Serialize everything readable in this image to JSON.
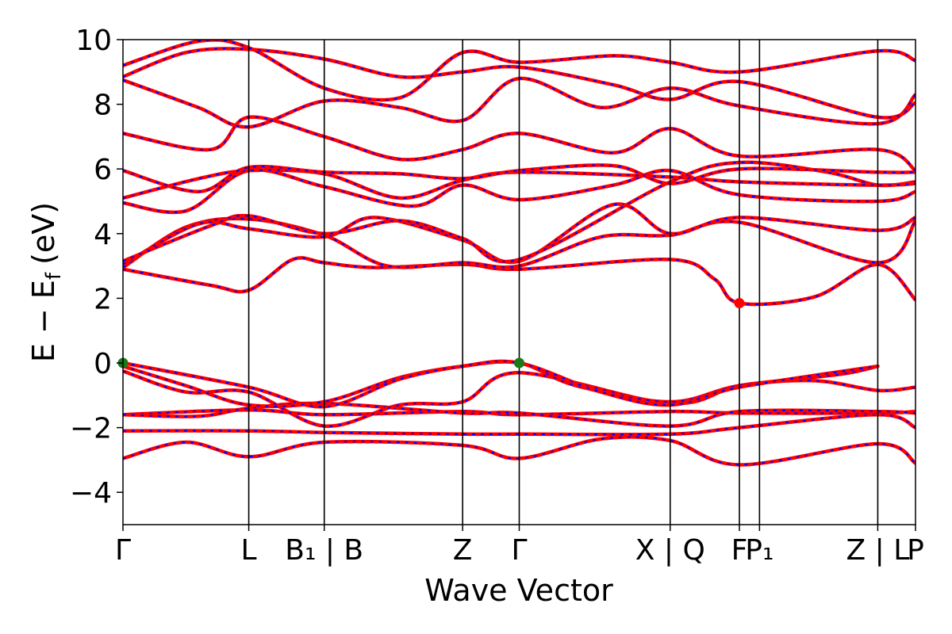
{
  "chart_data": {
    "type": "line",
    "title": "",
    "xlabel": "Wave Vector",
    "ylabel": "E − E_f (eV)",
    "ylabel_parts": {
      "main": "E − E",
      "sub": "f",
      "unit": "(eV)"
    },
    "ylim": [
      -5,
      10
    ],
    "xlim": [
      0,
      10
    ],
    "yticks": [
      -4,
      -2,
      0,
      2,
      4,
      6,
      8,
      10
    ],
    "ytick_labels": [
      "−4",
      "−2",
      "0",
      "2",
      "4",
      "6",
      "8",
      "10"
    ],
    "kpoints": [
      {
        "x": 0.0,
        "label": "Γ"
      },
      {
        "x": 1.0,
        "label": "L"
      },
      {
        "x": 1.6,
        "label": "B₁ | B"
      },
      {
        "x": 2.7,
        "label": "Z"
      },
      {
        "x": 3.15,
        "label": "Γ"
      },
      {
        "x": 4.35,
        "label": "X | Q"
      },
      {
        "x": 4.9,
        "label": "F"
      },
      {
        "x": 5.06,
        "label": "P₁"
      },
      {
        "x": 6.0,
        "label": "Z | L"
      },
      {
        "x": 6.3,
        "label": "P"
      }
    ],
    "line_colors": {
      "band_a": "#ff0000",
      "band_b": "#0000ff"
    },
    "grid": false,
    "legend": "none",
    "markers": [
      {
        "name": "VBM",
        "x": 0.0,
        "y": 0.0,
        "color": "#1a7a1a"
      },
      {
        "name": "VBM",
        "x": 3.15,
        "y": 0.0,
        "color": "#1a7a1a"
      },
      {
        "name": "CBM",
        "x": 4.9,
        "y": 1.85,
        "color": "#ff0000"
      }
    ],
    "bands": [
      [
        [
          0,
          -2.95
        ],
        [
          0.5,
          -2.45
        ],
        [
          1.0,
          -2.9
        ],
        [
          1.6,
          -2.45
        ],
        [
          2.7,
          -2.55
        ],
        [
          3.15,
          -2.95
        ],
        [
          3.8,
          -2.35
        ],
        [
          4.35,
          -2.4
        ],
        [
          4.9,
          -3.15
        ],
        [
          6.0,
          -2.5
        ],
        [
          6.3,
          -3.1
        ]
      ],
      [
        [
          0,
          -2.1
        ],
        [
          1.0,
          -2.1
        ],
        [
          1.6,
          -2.15
        ],
        [
          2.7,
          -2.2
        ],
        [
          3.15,
          -2.2
        ],
        [
          4.35,
          -2.2
        ],
        [
          4.9,
          -2.0
        ],
        [
          6.0,
          -1.6
        ],
        [
          6.3,
          -2.0
        ]
      ],
      [
        [
          0,
          -1.6
        ],
        [
          1.0,
          -1.45
        ],
        [
          1.6,
          -1.6
        ],
        [
          2.7,
          -1.5
        ],
        [
          3.15,
          -1.6
        ],
        [
          4.35,
          -1.5
        ],
        [
          4.9,
          -1.55
        ],
        [
          6.0,
          -1.55
        ],
        [
          6.3,
          -1.5
        ]
      ],
      [
        [
          0,
          -1.6
        ],
        [
          0.6,
          -1.65
        ],
        [
          1.0,
          -1.4
        ],
        [
          1.6,
          -1.25
        ],
        [
          2.7,
          -1.55
        ],
        [
          3.15,
          -1.55
        ],
        [
          4.35,
          -1.95
        ],
        [
          4.9,
          -1.5
        ],
        [
          6.0,
          -1.5
        ],
        [
          6.3,
          -1.55
        ]
      ],
      [
        [
          0,
          -0.25
        ],
        [
          0.5,
          -0.9
        ],
        [
          1.0,
          -0.9
        ],
        [
          1.6,
          -1.95
        ],
        [
          2.2,
          -1.3
        ],
        [
          2.7,
          -1.2
        ],
        [
          3.15,
          -0.3
        ],
        [
          4.35,
          -1.25
        ],
        [
          4.9,
          -0.7
        ],
        [
          5.5,
          -0.55
        ],
        [
          6.0,
          -0.85
        ],
        [
          6.3,
          -0.75
        ]
      ],
      [
        [
          0,
          -0.1
        ],
        [
          0.5,
          -0.7
        ],
        [
          1.0,
          -1.3
        ],
        [
          1.6,
          -1.2
        ],
        [
          2.2,
          -0.45
        ],
        [
          2.7,
          -0.1
        ],
        [
          3.15,
          0.0
        ],
        [
          3.6,
          -0.7
        ],
        [
          4.35,
          -1.2
        ],
        [
          4.9,
          -0.7
        ],
        [
          5.7,
          -0.35
        ],
        [
          6.0,
          -0.1
        ]
      ],
      [
        [
          0,
          0.0
        ],
        [
          1.0,
          -0.75
        ],
        [
          1.6,
          -1.35
        ],
        [
          2.2,
          -0.5
        ],
        [
          2.7,
          -0.1
        ],
        [
          3.15,
          0.0
        ],
        [
          3.8,
          -0.9
        ],
        [
          4.35,
          -1.3
        ],
        [
          4.9,
          -0.75
        ],
        [
          6.0,
          -0.1
        ]
      ],
      [
        [
          0,
          2.9
        ],
        [
          0.7,
          2.4
        ],
        [
          1.0,
          2.25
        ],
        [
          1.35,
          3.2
        ],
        [
          1.6,
          3.1
        ],
        [
          2.0,
          2.95
        ],
        [
          2.7,
          3.05
        ],
        [
          3.15,
          2.9
        ],
        [
          4.35,
          3.2
        ],
        [
          4.7,
          2.6
        ],
        [
          4.9,
          1.85
        ],
        [
          5.5,
          2.05
        ],
        [
          6.0,
          3.05
        ],
        [
          6.3,
          1.95
        ]
      ],
      [
        [
          0,
          2.95
        ],
        [
          0.5,
          4.2
        ],
        [
          1.0,
          4.45
        ],
        [
          1.6,
          3.95
        ],
        [
          2.1,
          3.0
        ],
        [
          2.7,
          3.1
        ],
        [
          3.15,
          3.0
        ],
        [
          3.8,
          3.9
        ],
        [
          4.35,
          3.95
        ],
        [
          4.9,
          4.35
        ],
        [
          6.0,
          3.1
        ],
        [
          6.3,
          4.4
        ]
      ],
      [
        [
          0,
          3.05
        ],
        [
          0.6,
          4.3
        ],
        [
          1.0,
          4.15
        ],
        [
          1.6,
          3.9
        ],
        [
          2.0,
          4.5
        ],
        [
          2.7,
          3.8
        ],
        [
          3.15,
          3.15
        ],
        [
          3.9,
          4.9
        ],
        [
          4.35,
          4.0
        ],
        [
          4.9,
          4.5
        ],
        [
          6.0,
          4.1
        ],
        [
          6.3,
          4.5
        ]
      ],
      [
        [
          0,
          3.15
        ],
        [
          0.7,
          4.25
        ],
        [
          1.0,
          4.55
        ],
        [
          1.6,
          4.0
        ],
        [
          2.2,
          4.4
        ],
        [
          2.7,
          3.85
        ],
        [
          3.15,
          3.2
        ],
        [
          4.35,
          5.6
        ],
        [
          4.9,
          6.2
        ],
        [
          5.6,
          5.9
        ],
        [
          6.0,
          5.5
        ],
        [
          6.3,
          5.6
        ]
      ],
      [
        [
          0,
          4.95
        ],
        [
          0.5,
          4.7
        ],
        [
          1.0,
          5.95
        ],
        [
          1.6,
          5.45
        ],
        [
          2.3,
          4.85
        ],
        [
          2.7,
          5.5
        ],
        [
          3.15,
          5.05
        ],
        [
          3.9,
          5.5
        ],
        [
          4.35,
          5.95
        ],
        [
          4.9,
          5.2
        ],
        [
          6.0,
          5.0
        ],
        [
          6.3,
          5.3
        ]
      ],
      [
        [
          0,
          5.1
        ],
        [
          0.6,
          5.7
        ],
        [
          1.0,
          5.95
        ],
        [
          1.6,
          5.85
        ],
        [
          2.2,
          5.1
        ],
        [
          2.7,
          5.65
        ],
        [
          3.15,
          5.9
        ],
        [
          4.35,
          5.75
        ],
        [
          4.9,
          5.6
        ],
        [
          6.0,
          5.5
        ],
        [
          6.3,
          5.55
        ]
      ],
      [
        [
          0,
          5.95
        ],
        [
          0.6,
          5.3
        ],
        [
          1.0,
          6.05
        ],
        [
          1.6,
          5.9
        ],
        [
          2.2,
          5.85
        ],
        [
          2.7,
          5.7
        ],
        [
          3.15,
          5.95
        ],
        [
          3.9,
          6.1
        ],
        [
          4.35,
          5.55
        ],
        [
          4.9,
          6.0
        ],
        [
          6.0,
          5.9
        ],
        [
          6.3,
          5.9
        ]
      ],
      [
        [
          0,
          7.1
        ],
        [
          0.7,
          6.6
        ],
        [
          1.0,
          7.6
        ],
        [
          1.6,
          7.0
        ],
        [
          2.2,
          6.3
        ],
        [
          2.7,
          6.6
        ],
        [
          3.15,
          7.1
        ],
        [
          3.9,
          6.5
        ],
        [
          4.35,
          7.25
        ],
        [
          4.9,
          6.4
        ],
        [
          6.0,
          6.6
        ],
        [
          6.3,
          5.95
        ]
      ],
      [
        [
          0,
          8.75
        ],
        [
          0.6,
          7.9
        ],
        [
          1.0,
          7.3
        ],
        [
          1.6,
          8.1
        ],
        [
          2.2,
          7.9
        ],
        [
          2.7,
          7.5
        ],
        [
          3.15,
          8.8
        ],
        [
          3.8,
          7.9
        ],
        [
          4.35,
          8.5
        ],
        [
          4.9,
          7.95
        ],
        [
          6.0,
          7.4
        ],
        [
          6.3,
          8.3
        ]
      ],
      [
        [
          0,
          8.85
        ],
        [
          0.5,
          9.6
        ],
        [
          1.0,
          9.7
        ],
        [
          1.6,
          9.4
        ],
        [
          2.2,
          8.85
        ],
        [
          2.7,
          9.0
        ],
        [
          3.15,
          9.15
        ],
        [
          3.9,
          8.6
        ],
        [
          4.35,
          8.15
        ],
        [
          4.9,
          8.7
        ],
        [
          6.0,
          7.6
        ],
        [
          6.3,
          8.05
        ]
      ],
      [
        [
          0,
          9.2
        ],
        [
          0.6,
          9.95
        ],
        [
          1.0,
          9.75
        ],
        [
          1.6,
          8.5
        ],
        [
          2.2,
          8.2
        ],
        [
          2.7,
          9.6
        ],
        [
          3.15,
          9.3
        ],
        [
          3.9,
          9.5
        ],
        [
          4.35,
          9.3
        ],
        [
          4.9,
          9.0
        ],
        [
          6.0,
          9.65
        ],
        [
          6.3,
          9.35
        ]
      ]
    ]
  }
}
